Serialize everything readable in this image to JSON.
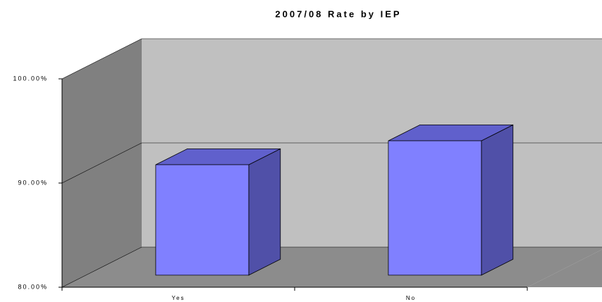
{
  "chart_data": {
    "type": "bar3d",
    "title": "2007/08 Rate by IEP",
    "categories": [
      "Yes",
      "No"
    ],
    "values": [
      90.6,
      92.9
    ],
    "color": "#8080ff",
    "ylim": [
      80,
      100
    ],
    "yticks": [
      {
        "value": 80,
        "label": "80.00%"
      },
      {
        "value": 90,
        "label": "90.00%"
      },
      {
        "value": 100,
        "label": "100.00%"
      }
    ],
    "grid": true
  }
}
